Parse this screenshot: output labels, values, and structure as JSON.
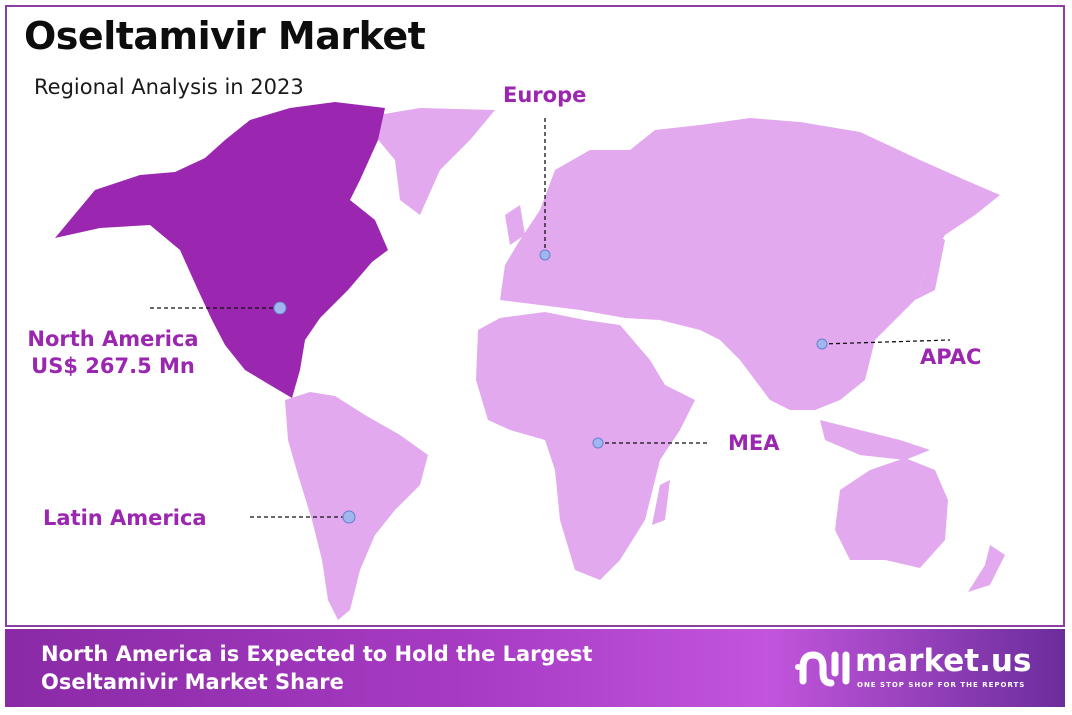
{
  "header": {
    "title": "Oseltamivir Market",
    "subtitle": "Regional Analysis in 2023"
  },
  "colors": {
    "highlight_region": "#9b27b0",
    "other_regions": "#e2a9ee",
    "label": "#9b27b0",
    "marker": "#9fb6ee"
  },
  "regions": [
    {
      "name": "North America",
      "value": "US$ 267.5 Mn",
      "highlighted": true
    },
    {
      "name": "Europe"
    },
    {
      "name": "APAC"
    },
    {
      "name": "MEA"
    },
    {
      "name": "Latin America"
    }
  ],
  "footer": {
    "line1": "North America is Expected to Hold the Largest",
    "line2": "Oseltamivir Market Share"
  },
  "logo": {
    "name": "market.us",
    "tagline": "ONE STOP SHOP FOR THE REPORTS"
  }
}
